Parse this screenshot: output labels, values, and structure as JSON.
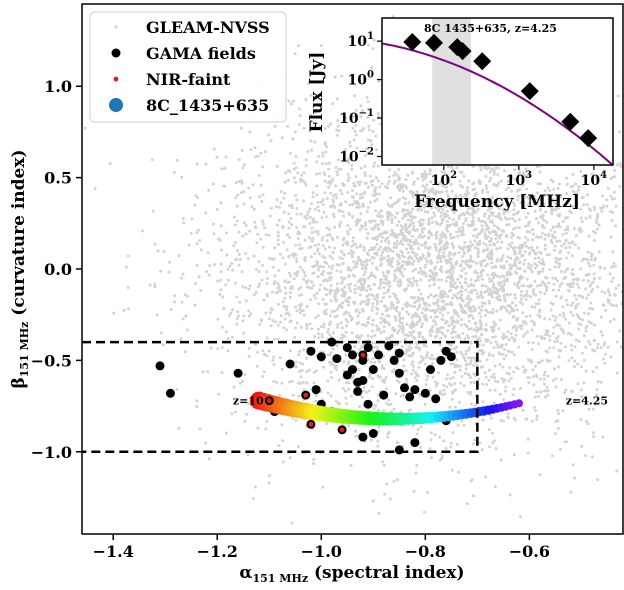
{
  "chart_data": {
    "type": "scatter",
    "xlabel_main": "α",
    "xlabel_sub": "151 MHz",
    "xlabel_rest": " (spectral index)",
    "ylabel_main": "β",
    "ylabel_sub": "151 MHz",
    "ylabel_rest": " (curvature index)",
    "xlim": [
      -1.46,
      -0.42
    ],
    "ylim": [
      -1.45,
      1.45
    ],
    "xticks": [
      -1.4,
      -1.2,
      -1.0,
      -0.8,
      -0.6
    ],
    "xtick_labels": [
      "−1.4",
      "−1.2",
      "−1.0",
      "−0.8",
      "−0.6"
    ],
    "yticks": [
      -1.0,
      -0.5,
      0.0,
      0.5,
      1.0
    ],
    "ytick_labels": [
      "−1.0",
      "−0.5",
      "0.0",
      "0.5",
      "1.0"
    ],
    "grid": false,
    "legend_position": "top-left",
    "legend": [
      {
        "label": "GLEAM-NVSS",
        "color": "#d3d3d3",
        "marker": "small-dot"
      },
      {
        "label": "GAMA fields",
        "color": "#000000",
        "marker": "dot"
      },
      {
        "label": "NIR-faint",
        "color": "#e41a1c",
        "marker": "small-dot"
      },
      {
        "label": "8C_1435+635",
        "color": "#1f77b4",
        "marker": "big-dot"
      }
    ],
    "selection_box": {
      "x": [
        -1.46,
        -0.7
      ],
      "y": [
        -1.0,
        -0.4
      ],
      "style": "dashed"
    },
    "track_labels": [
      {
        "text": "z=10",
        "x": -1.17,
        "y": -0.72
      },
      {
        "text": "z=4.25",
        "x": -0.53,
        "y": -0.72
      }
    ],
    "background_cloud": {
      "label": "GLEAM-NVSS",
      "color": "#d3d3d3",
      "count": 4500,
      "center": [
        -0.78,
        0.0
      ],
      "spread": [
        0.18,
        0.45
      ]
    },
    "gama_points": [
      [
        -1.31,
        -0.53
      ],
      [
        -1.29,
        -0.68
      ],
      [
        -1.16,
        -0.57
      ],
      [
        -1.1,
        -0.71
      ],
      [
        -1.09,
        -0.78
      ],
      [
        -1.06,
        -0.52
      ],
      [
        -1.03,
        -0.76
      ],
      [
        -1.02,
        -0.45
      ],
      [
        -1.01,
        -0.66
      ],
      [
        -1.0,
        -0.74
      ],
      [
        -0.98,
        -0.4
      ],
      [
        -0.98,
        -0.78
      ],
      [
        -0.97,
        -0.49
      ],
      [
        -0.95,
        -0.43
      ],
      [
        -0.95,
        -0.58
      ],
      [
        -0.94,
        -0.47
      ],
      [
        -0.94,
        -0.55
      ],
      [
        -0.93,
        -0.62
      ],
      [
        -0.93,
        -0.67
      ],
      [
        -0.92,
        -0.5
      ],
      [
        -0.92,
        -0.61
      ],
      [
        -0.91,
        -0.43
      ],
      [
        -0.91,
        -0.74
      ],
      [
        -0.9,
        -0.55
      ],
      [
        -0.89,
        -0.47
      ],
      [
        -0.88,
        -0.69
      ],
      [
        -0.87,
        -0.42
      ],
      [
        -0.86,
        -0.5
      ],
      [
        -0.85,
        -0.46
      ],
      [
        -0.85,
        -0.57
      ],
      [
        -0.84,
        -0.65
      ],
      [
        -0.83,
        -0.7
      ],
      [
        -0.82,
        -0.66
      ],
      [
        -0.8,
        -0.68
      ],
      [
        -0.79,
        -0.55
      ],
      [
        -0.78,
        -0.71
      ],
      [
        -0.77,
        -0.5
      ],
      [
        -0.76,
        -0.45
      ],
      [
        -0.75,
        -0.48
      ],
      [
        -0.92,
        -0.92
      ],
      [
        -0.9,
        -0.9
      ],
      [
        -0.85,
        -0.99
      ],
      [
        -0.82,
        -0.95
      ],
      [
        -0.76,
        -0.83
      ],
      [
        -1.0,
        -0.48
      ]
    ],
    "nir_faint_points": [
      [
        -1.1,
        -0.72
      ],
      [
        -1.03,
        -0.69
      ],
      [
        -1.02,
        -0.85
      ],
      [
        -0.96,
        -0.88
      ],
      [
        -0.92,
        -0.47
      ]
    ],
    "redshift_track": {
      "z_range": [
        10,
        4.25
      ],
      "x_range": [
        -1.12,
        -0.62
      ],
      "y_vertex": [
        -0.86,
        -0.82
      ],
      "color_scale": "rainbow (red at z=10 to violet at z=4.25)"
    },
    "inset": {
      "title": "8C 1435+635, z=4.25",
      "xlabel": "Frequency [MHz]",
      "ylabel": "Flux [Jy]",
      "xscale": "log",
      "yscale": "log",
      "xlim": [
        15,
        18000
      ],
      "ylim": [
        0.006,
        40
      ],
      "xtick_exps": [
        2,
        3,
        4
      ],
      "ytick_exps": [
        -2,
        -1,
        0,
        1
      ],
      "shaded_band": [
        70,
        230
      ],
      "points": [
        [
          38,
          9.5
        ],
        [
          74,
          9.0
        ],
        [
          151,
          7.0
        ],
        [
          178,
          5.5
        ],
        [
          325,
          3.0
        ],
        [
          1400,
          0.5
        ],
        [
          4850,
          0.08
        ],
        [
          8400,
          0.03
        ]
      ],
      "model_color": "#800080",
      "model": "log10 S = 0.85 - 0.45 (log10 ν - 1.4) - 0.22 (log10 ν - 1.4)^2"
    }
  }
}
